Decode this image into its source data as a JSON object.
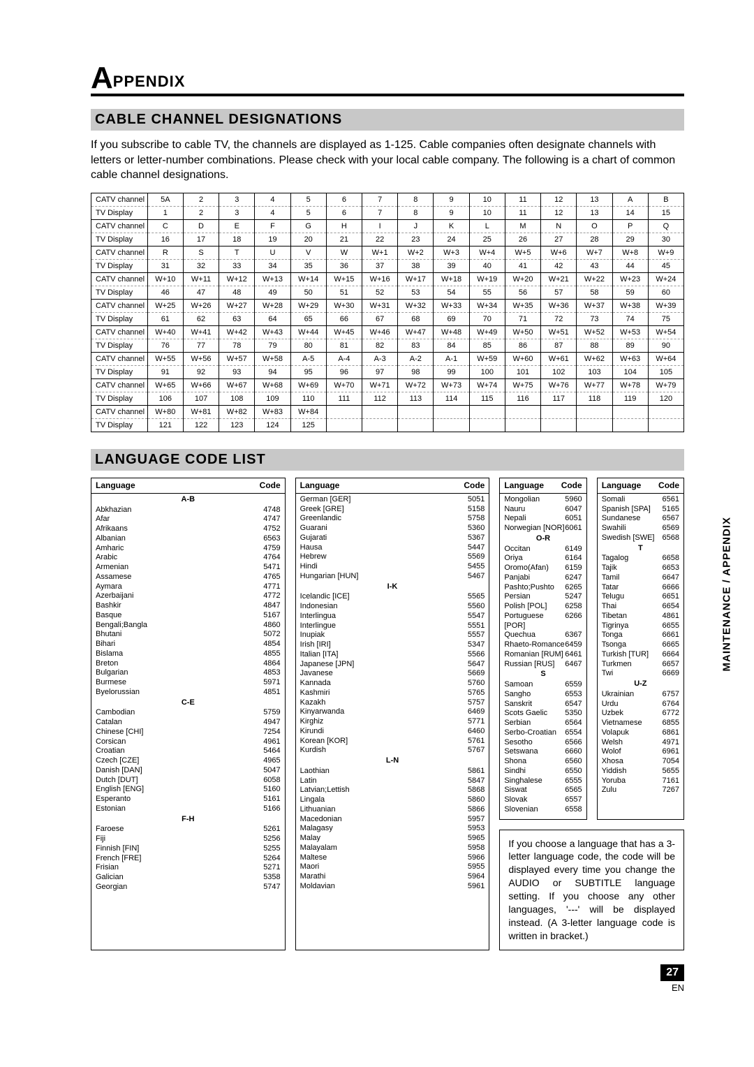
{
  "sideText": "MAINTENANCE / APPENDIX",
  "titleBig": "A",
  "titleRest": "PPENDIX",
  "section1": "CABLE CHANNEL DESIGNATIONS",
  "intro": "If you subscribe to cable TV, the channels are displayed as 1-125. Cable companies often designate channels with letters or letter-number combinations. Please check with your local cable company. The following is a chart of common cable channel designations.",
  "rowLabels": {
    "catv": "CATV channel",
    "tv": "TV Display"
  },
  "chanRows": [
    {
      "catv": [
        "5A",
        "2",
        "3",
        "4",
        "5",
        "6",
        "7",
        "8",
        "9",
        "10",
        "11",
        "12",
        "13",
        "A",
        "B"
      ],
      "tv": [
        "1",
        "2",
        "3",
        "4",
        "5",
        "6",
        "7",
        "8",
        "9",
        "10",
        "11",
        "12",
        "13",
        "14",
        "15"
      ]
    },
    {
      "catv": [
        "C",
        "D",
        "E",
        "F",
        "G",
        "H",
        "I",
        "J",
        "K",
        "L",
        "M",
        "N",
        "O",
        "P",
        "Q"
      ],
      "tv": [
        "16",
        "17",
        "18",
        "19",
        "20",
        "21",
        "22",
        "23",
        "24",
        "25",
        "26",
        "27",
        "28",
        "29",
        "30"
      ]
    },
    {
      "catv": [
        "R",
        "S",
        "T",
        "U",
        "V",
        "W",
        "W+1",
        "W+2",
        "W+3",
        "W+4",
        "W+5",
        "W+6",
        "W+7",
        "W+8",
        "W+9"
      ],
      "tv": [
        "31",
        "32",
        "33",
        "34",
        "35",
        "36",
        "37",
        "38",
        "39",
        "40",
        "41",
        "42",
        "43",
        "44",
        "45"
      ]
    },
    {
      "catv": [
        "W+10",
        "W+11",
        "W+12",
        "W+13",
        "W+14",
        "W+15",
        "W+16",
        "W+17",
        "W+18",
        "W+19",
        "W+20",
        "W+21",
        "W+22",
        "W+23",
        "W+24"
      ],
      "tv": [
        "46",
        "47",
        "48",
        "49",
        "50",
        "51",
        "52",
        "53",
        "54",
        "55",
        "56",
        "57",
        "58",
        "59",
        "60"
      ]
    },
    {
      "catv": [
        "W+25",
        "W+26",
        "W+27",
        "W+28",
        "W+29",
        "W+30",
        "W+31",
        "W+32",
        "W+33",
        "W+34",
        "W+35",
        "W+36",
        "W+37",
        "W+38",
        "W+39"
      ],
      "tv": [
        "61",
        "62",
        "63",
        "64",
        "65",
        "66",
        "67",
        "68",
        "69",
        "70",
        "71",
        "72",
        "73",
        "74",
        "75"
      ]
    },
    {
      "catv": [
        "W+40",
        "W+41",
        "W+42",
        "W+43",
        "W+44",
        "W+45",
        "W+46",
        "W+47",
        "W+48",
        "W+49",
        "W+50",
        "W+51",
        "W+52",
        "W+53",
        "W+54"
      ],
      "tv": [
        "76",
        "77",
        "78",
        "79",
        "80",
        "81",
        "82",
        "83",
        "84",
        "85",
        "86",
        "87",
        "88",
        "89",
        "90"
      ]
    },
    {
      "catv": [
        "W+55",
        "W+56",
        "W+57",
        "W+58",
        "A-5",
        "A-4",
        "A-3",
        "A-2",
        "A-1",
        "W+59",
        "W+60",
        "W+61",
        "W+62",
        "W+63",
        "W+64"
      ],
      "tv": [
        "91",
        "92",
        "93",
        "94",
        "95",
        "96",
        "97",
        "98",
        "99",
        "100",
        "101",
        "102",
        "103",
        "104",
        "105"
      ]
    },
    {
      "catv": [
        "W+65",
        "W+66",
        "W+67",
        "W+68",
        "W+69",
        "W+70",
        "W+71",
        "W+72",
        "W+73",
        "W+74",
        "W+75",
        "W+76",
        "W+77",
        "W+78",
        "W+79"
      ],
      "tv": [
        "106",
        "107",
        "108",
        "109",
        "110",
        "111",
        "112",
        "113",
        "114",
        "115",
        "116",
        "117",
        "118",
        "119",
        "120"
      ]
    },
    {
      "catv": [
        "W+80",
        "W+81",
        "W+82",
        "W+83",
        "W+84",
        "",
        "",
        "",
        "",
        "",
        "",
        "",
        "",
        "",
        ""
      ],
      "tv": [
        "121",
        "122",
        "123",
        "124",
        "125",
        "",
        "",
        "",
        "",
        "",
        "",
        "",
        "",
        "",
        ""
      ]
    }
  ],
  "section2": "LANGUAGE CODE LIST",
  "langHead": {
    "lang": "Language",
    "code": "Code"
  },
  "langCols": [
    [
      {
        "h": "A-B"
      },
      {
        "n": "Abkhazian",
        "c": "4748"
      },
      {
        "n": "Afar",
        "c": "4747"
      },
      {
        "n": "Afrikaans",
        "c": "4752"
      },
      {
        "n": "Albanian",
        "c": "6563"
      },
      {
        "n": "Amharic",
        "c": "4759"
      },
      {
        "n": "Arabic",
        "c": "4764"
      },
      {
        "n": "Armenian",
        "c": "5471"
      },
      {
        "n": "Assamese",
        "c": "4765"
      },
      {
        "n": "Aymara",
        "c": "4771"
      },
      {
        "n": "Azerbaijani",
        "c": "4772"
      },
      {
        "n": "Bashkir",
        "c": "4847"
      },
      {
        "n": "Basque",
        "c": "5167"
      },
      {
        "n": "Bengali;Bangla",
        "c": "4860"
      },
      {
        "n": "Bhutani",
        "c": "5072"
      },
      {
        "n": "Bihari",
        "c": "4854"
      },
      {
        "n": "Bislama",
        "c": "4855"
      },
      {
        "n": "Breton",
        "c": "4864"
      },
      {
        "n": "Bulgarian",
        "c": "4853"
      },
      {
        "n": "Burmese",
        "c": "5971"
      },
      {
        "n": "Byelorussian",
        "c": "4851"
      },
      {
        "h": "C-E"
      },
      {
        "n": "Cambodian",
        "c": "5759"
      },
      {
        "n": "Catalan",
        "c": "4947"
      },
      {
        "n": "Chinese [CHI]",
        "c": "7254"
      },
      {
        "n": "Corsican",
        "c": "4961"
      },
      {
        "n": "Croatian",
        "c": "5464"
      },
      {
        "n": "Czech [CZE]",
        "c": "4965"
      },
      {
        "n": "Danish [DAN]",
        "c": "5047"
      },
      {
        "n": "Dutch [DUT]",
        "c": "6058"
      },
      {
        "n": "English [ENG]",
        "c": "5160"
      },
      {
        "n": "Esperanto",
        "c": "5161"
      },
      {
        "n": "Estonian",
        "c": "5166"
      },
      {
        "h": "F-H"
      },
      {
        "n": "Faroese",
        "c": "5261"
      },
      {
        "n": "Fiji",
        "c": "5256"
      },
      {
        "n": "Finnish [FIN]",
        "c": "5255"
      },
      {
        "n": "French [FRE]",
        "c": "5264"
      },
      {
        "n": "Frisian",
        "c": "5271"
      },
      {
        "n": "Galician",
        "c": "5358"
      },
      {
        "n": "Georgian",
        "c": "5747"
      }
    ],
    [
      {
        "n": "German [GER]",
        "c": "5051"
      },
      {
        "n": "Greek [GRE]",
        "c": "5158"
      },
      {
        "n": "Greenlandic",
        "c": "5758"
      },
      {
        "n": "Guarani",
        "c": "5360"
      },
      {
        "n": "Gujarati",
        "c": "5367"
      },
      {
        "n": "Hausa",
        "c": "5447"
      },
      {
        "n": "Hebrew",
        "c": "5569"
      },
      {
        "n": "Hindi",
        "c": "5455"
      },
      {
        "n": "Hungarian [HUN]",
        "c": "5467"
      },
      {
        "h": "I-K"
      },
      {
        "n": "Icelandic [ICE]",
        "c": "5565"
      },
      {
        "n": "Indonesian",
        "c": "5560"
      },
      {
        "n": "Interlingua",
        "c": "5547"
      },
      {
        "n": "Interlingue",
        "c": "5551"
      },
      {
        "n": "Inupiak",
        "c": "5557"
      },
      {
        "n": "Irish [IRI]",
        "c": "5347"
      },
      {
        "n": "Italian [ITA]",
        "c": "5566"
      },
      {
        "n": "Japanese [JPN]",
        "c": "5647"
      },
      {
        "n": "Javanese",
        "c": "5669"
      },
      {
        "n": "Kannada",
        "c": "5760"
      },
      {
        "n": "Kashmiri",
        "c": "5765"
      },
      {
        "n": "Kazakh",
        "c": "5757"
      },
      {
        "n": "Kinyarwanda",
        "c": "6469"
      },
      {
        "n": "Kirghiz",
        "c": "5771"
      },
      {
        "n": "Kirundi",
        "c": "6460"
      },
      {
        "n": "Korean [KOR]",
        "c": "5761"
      },
      {
        "n": "Kurdish",
        "c": "5767"
      },
      {
        "h": "L-N"
      },
      {
        "n": "Laothian",
        "c": "5861"
      },
      {
        "n": "Latin",
        "c": "5847"
      },
      {
        "n": "Latvian;Lettish",
        "c": "5868"
      },
      {
        "n": "Lingala",
        "c": "5860"
      },
      {
        "n": "Lithuanian",
        "c": "5866"
      },
      {
        "n": "Macedonian",
        "c": "5957"
      },
      {
        "n": "Malagasy",
        "c": "5953"
      },
      {
        "n": "Malay",
        "c": "5965"
      },
      {
        "n": "Malayalam",
        "c": "5958"
      },
      {
        "n": "Maltese",
        "c": "5966"
      },
      {
        "n": "Maori",
        "c": "5955"
      },
      {
        "n": "Marathi",
        "c": "5964"
      },
      {
        "n": "Moldavian",
        "c": "5961"
      }
    ],
    [
      {
        "n": "Mongolian",
        "c": "5960"
      },
      {
        "n": "Nauru",
        "c": "6047"
      },
      {
        "n": "Nepali",
        "c": "6051"
      },
      {
        "n": "Norwegian [NOR]",
        "c": "6061"
      },
      {
        "h": "O-R"
      },
      {
        "n": "Occitan",
        "c": "6149"
      },
      {
        "n": "Oriya",
        "c": "6164"
      },
      {
        "n": "Oromo(Afan)",
        "c": "6159"
      },
      {
        "n": "Panjabi",
        "c": "6247"
      },
      {
        "n": "Pashto;Pushto",
        "c": "6265"
      },
      {
        "n": "Persian",
        "c": "5247"
      },
      {
        "n": "Polish [POL]",
        "c": "6258"
      },
      {
        "n": "Portuguese [POR]",
        "c": "6266"
      },
      {
        "n": "Quechua",
        "c": "6367"
      },
      {
        "n": "Rhaeto-Romance",
        "c": "6459"
      },
      {
        "n": "Romanian [RUM]",
        "c": "6461"
      },
      {
        "n": "Russian [RUS]",
        "c": "6467"
      },
      {
        "h": "S"
      },
      {
        "n": "Samoan",
        "c": "6559"
      },
      {
        "n": "Sangho",
        "c": "6553"
      },
      {
        "n": "Sanskrit",
        "c": "6547"
      },
      {
        "n": "Scots Gaelic",
        "c": "5350"
      },
      {
        "n": "Serbian",
        "c": "6564"
      },
      {
        "n": "Serbo-Croatian",
        "c": "6554"
      },
      {
        "n": "Sesotho",
        "c": "6566"
      },
      {
        "n": "Setswana",
        "c": "6660"
      },
      {
        "n": "Shona",
        "c": "6560"
      },
      {
        "n": "Sindhi",
        "c": "6550"
      },
      {
        "n": "Singhalese",
        "c": "6555"
      },
      {
        "n": "Siswat",
        "c": "6565"
      },
      {
        "n": "Slovak",
        "c": "6557"
      },
      {
        "n": "Slovenian",
        "c": "6558"
      }
    ],
    [
      {
        "n": "Somali",
        "c": "6561"
      },
      {
        "n": "Spanish [SPA]",
        "c": "5165"
      },
      {
        "n": "Sundanese",
        "c": "6567"
      },
      {
        "n": "Swahili",
        "c": "6569"
      },
      {
        "n": "Swedish [SWE]",
        "c": "6568"
      },
      {
        "h": "T"
      },
      {
        "n": "Tagalog",
        "c": "6658"
      },
      {
        "n": "Tajik",
        "c": "6653"
      },
      {
        "n": "Tamil",
        "c": "6647"
      },
      {
        "n": "Tatar",
        "c": "6666"
      },
      {
        "n": "Telugu",
        "c": "6651"
      },
      {
        "n": "Thai",
        "c": "6654"
      },
      {
        "n": "Tibetan",
        "c": "4861"
      },
      {
        "n": "Tigrinya",
        "c": "6655"
      },
      {
        "n": "Tonga",
        "c": "6661"
      },
      {
        "n": "Tsonga",
        "c": "6665"
      },
      {
        "n": "Turkish [TUR]",
        "c": "6664"
      },
      {
        "n": "Turkmen",
        "c": "6657"
      },
      {
        "n": "Twi",
        "c": "6669"
      },
      {
        "h": "U-Z"
      },
      {
        "n": "Ukrainian",
        "c": "6757"
      },
      {
        "n": "Urdu",
        "c": "6764"
      },
      {
        "n": "Uzbek",
        "c": "6772"
      },
      {
        "n": "Vietnamese",
        "c": "6855"
      },
      {
        "n": "Volapuk",
        "c": "6861"
      },
      {
        "n": "Welsh",
        "c": "4971"
      },
      {
        "n": "Wolof",
        "c": "6961"
      },
      {
        "n": "Xhosa",
        "c": "7054"
      },
      {
        "n": "Yiddish",
        "c": "5655"
      },
      {
        "n": "Yoruba",
        "c": "7161"
      },
      {
        "n": "Zulu",
        "c": "7267"
      }
    ]
  ],
  "note": "If you choose a language that has a 3-letter language code, the code will be displayed every time you change the AUDIO or SUBTITLE language setting. If you choose any other languages, '---' will be displayed instead. (A 3-letter language code is written in bracket.)",
  "pageNum": "27",
  "pageEn": "EN"
}
